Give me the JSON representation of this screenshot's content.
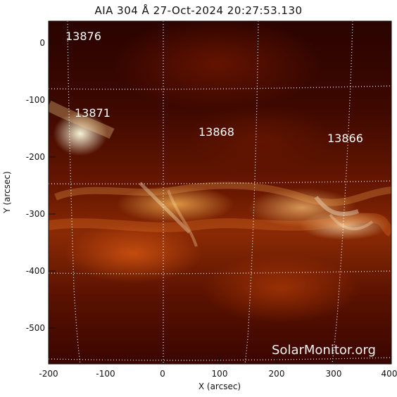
{
  "title": "AIA 304 Å 27-Oct-2024 20:27:53.130",
  "watermark": "SolarMonitor.org",
  "x_axis": {
    "label": "X (arcsec)",
    "ticks": [
      "-200",
      "-100",
      "0",
      "100",
      "200",
      "300",
      "400"
    ]
  },
  "y_axis": {
    "label": "Y (arcsec)",
    "ticks": [
      "0",
      "-100",
      "-200",
      "-300",
      "-400",
      "-500"
    ]
  },
  "active_regions": [
    {
      "id": "13876"
    },
    {
      "id": "13871"
    },
    {
      "id": "13868"
    },
    {
      "id": "13866"
    }
  ],
  "colors": {
    "frame": "#111111",
    "grid": "#ffffff",
    "label": "#ffffff"
  }
}
